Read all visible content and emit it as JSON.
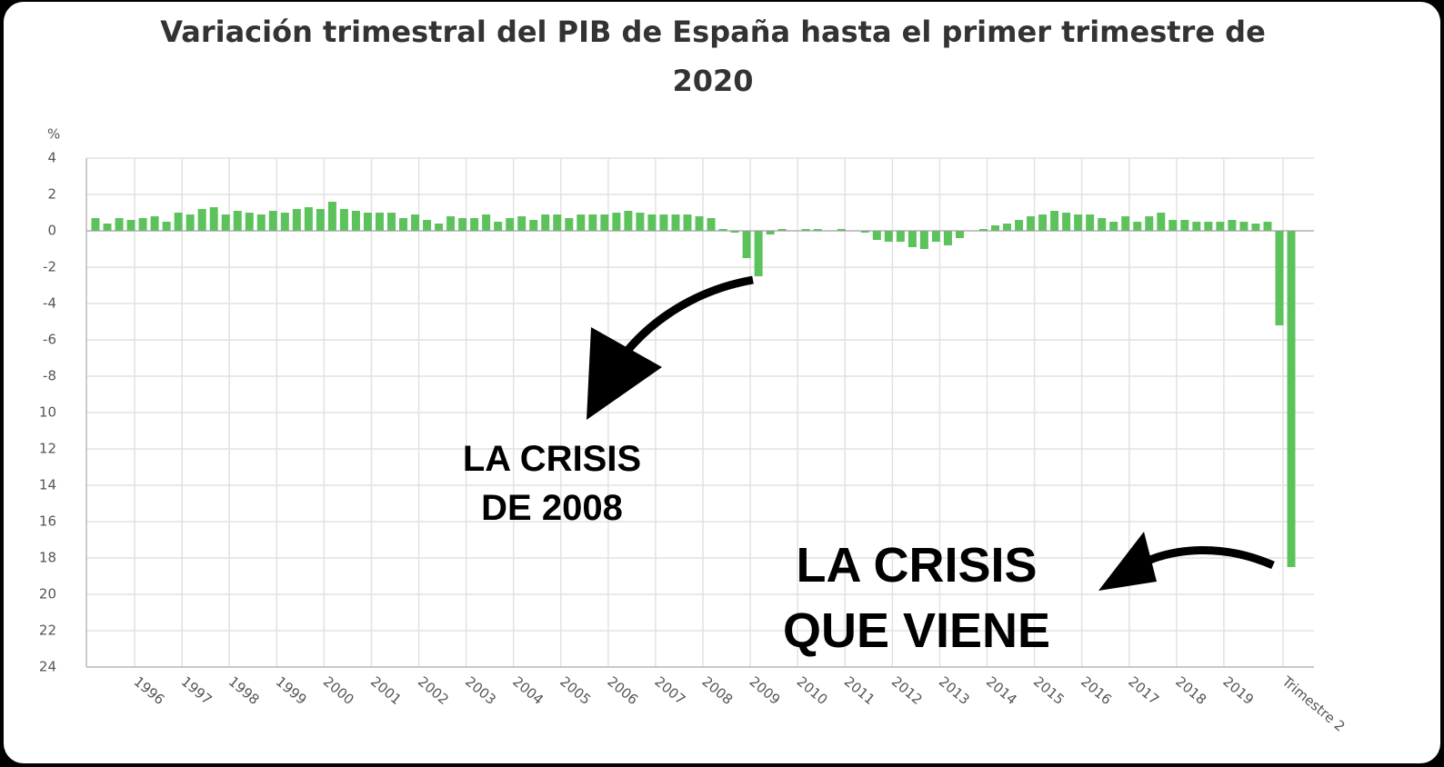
{
  "chart_data": {
    "type": "bar",
    "title": [
      "Variación trimestral del PIB de España hasta el primer trimestre de",
      "2020"
    ],
    "y_label": "%",
    "categories": [
      null,
      null,
      null,
      null,
      "1996",
      null,
      null,
      null,
      "1997",
      null,
      null,
      null,
      "1998",
      null,
      null,
      null,
      "1999",
      null,
      null,
      null,
      "2000",
      null,
      null,
      null,
      "2001",
      null,
      null,
      null,
      "2002",
      null,
      null,
      null,
      "2003",
      null,
      null,
      null,
      "2004",
      null,
      null,
      null,
      "2005",
      null,
      null,
      null,
      "2006",
      null,
      null,
      null,
      "2007",
      null,
      null,
      null,
      "2008",
      null,
      null,
      null,
      "2009",
      null,
      null,
      null,
      "2010",
      null,
      null,
      null,
      "2011",
      null,
      null,
      null,
      "2012",
      null,
      null,
      null,
      "2013",
      null,
      null,
      null,
      "2014",
      null,
      null,
      null,
      "2015",
      null,
      null,
      null,
      "2016",
      null,
      null,
      null,
      "2017",
      null,
      null,
      null,
      "2018",
      null,
      null,
      null,
      "2019",
      null,
      null,
      null,
      null,
      "Trimestre 2"
    ],
    "values": [
      0.7,
      0.4,
      0.7,
      0.6,
      0.7,
      0.8,
      0.5,
      1.0,
      0.9,
      1.2,
      1.3,
      0.9,
      1.1,
      1.0,
      0.9,
      1.1,
      1.0,
      1.2,
      1.3,
      1.2,
      1.6,
      1.2,
      1.1,
      1.0,
      1.0,
      1.0,
      0.7,
      0.9,
      0.6,
      0.4,
      0.8,
      0.7,
      0.7,
      0.9,
      0.5,
      0.7,
      0.8,
      0.6,
      0.9,
      0.9,
      0.7,
      0.9,
      0.9,
      0.9,
      1.0,
      1.1,
      1.0,
      0.9,
      0.9,
      0.9,
      0.9,
      0.8,
      0.7,
      0.1,
      -0.1,
      -1.5,
      -2.5,
      -0.2,
      0.1,
      0.0,
      0.1,
      0.1,
      0.0,
      0.1,
      0.0,
      -0.1,
      -0.5,
      -0.6,
      -0.6,
      -0.9,
      -1.0,
      -0.6,
      -0.8,
      -0.4,
      0.0,
      0.1,
      0.3,
      0.4,
      0.6,
      0.8,
      0.9,
      1.1,
      1.0,
      0.9,
      0.9,
      0.7,
      0.5,
      0.8,
      0.5,
      0.8,
      1.0,
      0.6,
      0.6,
      0.5,
      0.5,
      0.5,
      0.6,
      0.5,
      0.4,
      0.5,
      -5.2,
      -18.5
    ],
    "color": "#5cc35c",
    "ylim": [
      -24,
      4
    ],
    "yticks": [
      4,
      2,
      0,
      -2,
      -4,
      -6,
      -8,
      {
        "value": -10,
        "label": "10"
      },
      {
        "value": -12,
        "label": "12"
      },
      {
        "value": -14,
        "label": "14"
      },
      {
        "value": -16,
        "label": "16"
      },
      {
        "value": -18,
        "label": "18"
      },
      {
        "value": -20,
        "label": "20"
      },
      {
        "value": -22,
        "label": "22"
      },
      {
        "value": -24,
        "label": "24"
      }
    ],
    "grid": true,
    "annotations": [
      [
        "LA CRISIS",
        "DE 2008"
      ],
      [
        "LA CRISIS",
        "QUE VIENE"
      ]
    ]
  }
}
